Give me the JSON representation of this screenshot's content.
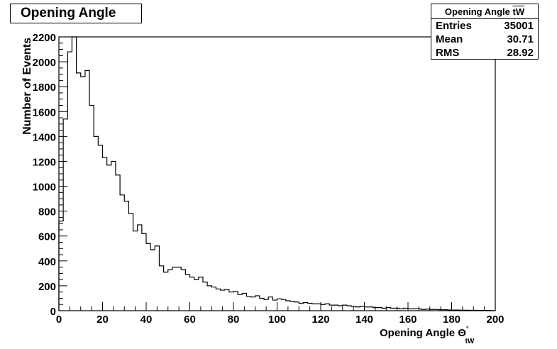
{
  "title": "Opening Angle",
  "stats": {
    "title_prefix": "Opening Angle ",
    "title_overline": "tW",
    "entries_label": "Entries",
    "entries_value": "35001",
    "mean_label": "Mean",
    "mean_value": "30.71",
    "rms_label": "RMS",
    "rms_value": "28.92"
  },
  "chart_data": {
    "type": "bar",
    "histogram": true,
    "xlabel": "Opening Angle Θ",
    "xlabel_sub": "tW",
    "xlabel_unit": "°",
    "ylabel": "Number of Events",
    "xlim": [
      0,
      200
    ],
    "ylim": [
      0,
      2200
    ],
    "bin_width": 2,
    "x_ticks": [
      0,
      20,
      40,
      60,
      80,
      100,
      120,
      140,
      160,
      180,
      200
    ],
    "y_ticks": [
      0,
      200,
      400,
      600,
      800,
      1000,
      1200,
      1400,
      1600,
      1800,
      2000,
      2200
    ],
    "line_color": "#000000",
    "values": [
      720,
      1540,
      2080,
      2210,
      1910,
      1880,
      1930,
      1650,
      1400,
      1330,
      1230,
      1170,
      1200,
      1090,
      930,
      880,
      780,
      640,
      690,
      620,
      540,
      490,
      520,
      360,
      310,
      330,
      350,
      350,
      330,
      290,
      270,
      250,
      270,
      230,
      200,
      190,
      175,
      165,
      170,
      150,
      155,
      130,
      140,
      115,
      110,
      120,
      100,
      90,
      110,
      85,
      95,
      90,
      80,
      75,
      70,
      60,
      65,
      60,
      55,
      55,
      50,
      55,
      45,
      45,
      40,
      45,
      40,
      35,
      30,
      35,
      30,
      30,
      25,
      25,
      20,
      25,
      20,
      20,
      15,
      20,
      15,
      15,
      15,
      10,
      12,
      10,
      10,
      8,
      8,
      6,
      5,
      5,
      4,
      4,
      3,
      3,
      2,
      2,
      2,
      1
    ]
  }
}
